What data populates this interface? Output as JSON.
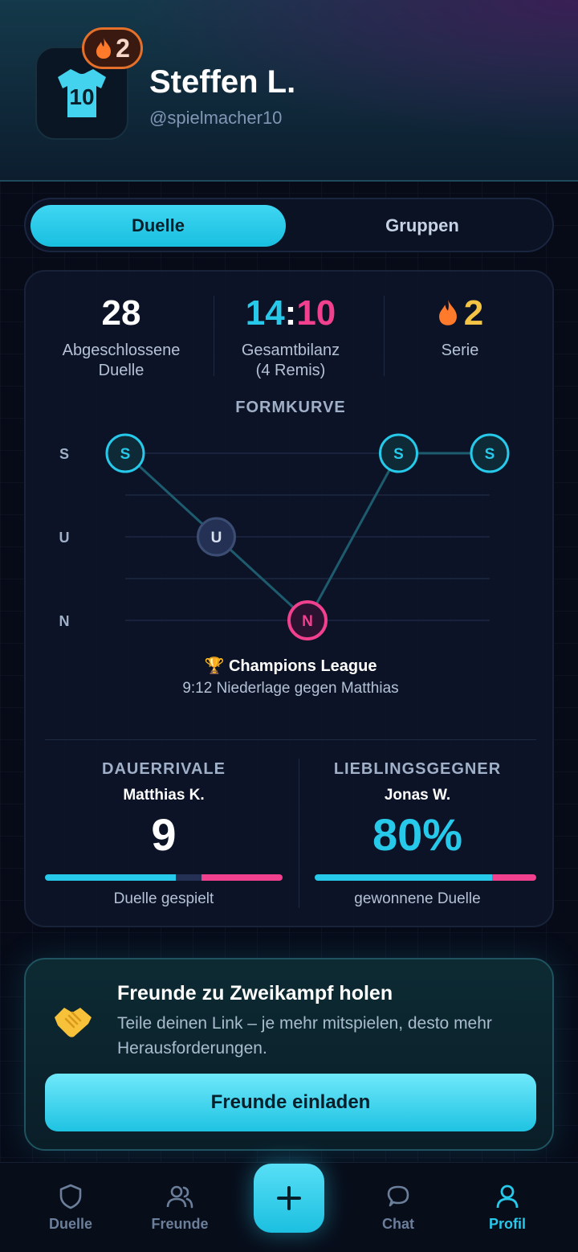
{
  "profile": {
    "name": "Steffen L.",
    "handle": "@spielmacher10",
    "jersey_number": "10",
    "streak_badge": "2"
  },
  "tabs": [
    {
      "label": "Duelle",
      "active": true
    },
    {
      "label": "Gruppen",
      "active": false
    }
  ],
  "stats": {
    "completed_value": "28",
    "completed_label_1": "Abgeschlossene",
    "completed_label_2": "Duelle",
    "balance_wins": "14",
    "balance_sep": ":",
    "balance_losses": "10",
    "balance_label_1": "Gesamtbilanz",
    "balance_label_2": "(4 Remis)",
    "streak_value": "2",
    "streak_label": "Serie"
  },
  "form_curve": {
    "title": "FORMKURVE",
    "y_labels": [
      "S",
      "U",
      "N"
    ],
    "results": [
      "S",
      "U",
      "N",
      "S",
      "S"
    ],
    "selected_index": 2,
    "selected_match_title": "Champions League",
    "selected_match_detail": "9:12 Niederlage gegen Matthias"
  },
  "rival": {
    "caption": "DAUERRIVALE",
    "name": "Matthias K.",
    "value": "9",
    "footer": "Duelle gespielt",
    "wins_fraction": 0.55,
    "draws_fraction": 0.11,
    "losses_fraction": 0.34
  },
  "favorite": {
    "caption": "LIEBLINGSGEGNER",
    "name": "Jonas W.",
    "value": "80%",
    "footer": "gewonnene Duelle",
    "win_fraction": 0.8
  },
  "invite": {
    "title": "Freunde zu Zweikampf holen",
    "text": "Teile deinen Link – je mehr mitspielen, desto mehr Herausforderungen.",
    "button": "Freunde einladen"
  },
  "nav": {
    "items": [
      {
        "label": "Duelle",
        "icon": "shield-icon"
      },
      {
        "label": "Freunde",
        "icon": "users-icon"
      },
      {
        "label": "Chat",
        "icon": "chat-icon"
      },
      {
        "label": "Profil",
        "icon": "user-icon",
        "active": true
      }
    ],
    "center_button_icon": "plus-icon"
  },
  "colors": {
    "win": "#27c9ea",
    "loss": "#f0408e",
    "draw": "#243154",
    "streak": "#f6c445",
    "accent": "#27c9ea"
  }
}
